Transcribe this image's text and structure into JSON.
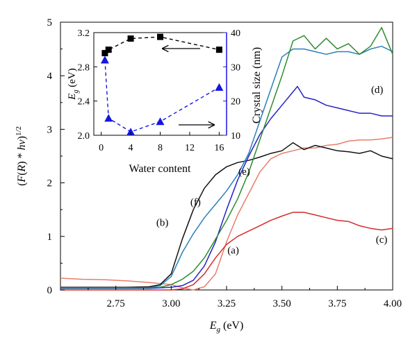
{
  "chart_data": [
    {
      "type": "line",
      "xlabel": "E_g (eV)",
      "ylabel": "(F(R) * hv)^1/2",
      "xlim": [
        2.5,
        4.0
      ],
      "ylim": [
        0,
        5
      ],
      "xticks": [
        "2.75",
        "3.00",
        "3.25",
        "3.50",
        "3.75",
        "4.00"
      ],
      "yticks": [
        "0",
        "1",
        "2",
        "3",
        "4",
        "5"
      ],
      "grid": false,
      "series": [
        {
          "name": "(a)",
          "color": "#e87d6b",
          "label_at": [
            3.28,
            0.68
          ],
          "x": [
            2.5,
            2.6,
            2.7,
            2.8,
            2.9,
            3.0,
            3.05,
            3.1,
            3.15,
            3.2,
            3.25,
            3.3,
            3.35,
            3.4,
            3.45,
            3.5,
            3.55,
            3.6,
            3.65,
            3.7,
            3.75,
            3.8,
            3.85,
            3.9,
            3.95,
            4.0
          ],
          "y": [
            0.22,
            0.2,
            0.19,
            0.17,
            0.14,
            0.1,
            0.04,
            0.0,
            0.06,
            0.3,
            0.9,
            1.4,
            1.8,
            2.2,
            2.45,
            2.55,
            2.6,
            2.65,
            2.65,
            2.7,
            2.72,
            2.78,
            2.8,
            2.8,
            2.82,
            2.85
          ]
        },
        {
          "name": "(b)",
          "color": "#111111",
          "label_at": [
            2.96,
            1.2
          ],
          "x": [
            2.5,
            2.7,
            2.8,
            2.9,
            2.95,
            3.0,
            3.05,
            3.1,
            3.15,
            3.2,
            3.25,
            3.3,
            3.35,
            3.4,
            3.45,
            3.5,
            3.55,
            3.6,
            3.65,
            3.7,
            3.75,
            3.8,
            3.85,
            3.9,
            3.95,
            4.0
          ],
          "y": [
            0.05,
            0.05,
            0.05,
            0.06,
            0.1,
            0.3,
            0.95,
            1.5,
            1.9,
            2.15,
            2.3,
            2.38,
            2.42,
            2.48,
            2.55,
            2.6,
            2.75,
            2.62,
            2.7,
            2.65,
            2.6,
            2.58,
            2.55,
            2.6,
            2.5,
            2.45
          ]
        },
        {
          "name": "(c)",
          "color": "#d62a2a",
          "label_at": [
            3.95,
            0.88
          ],
          "x": [
            2.5,
            2.9,
            3.0,
            3.05,
            3.1,
            3.15,
            3.2,
            3.25,
            3.3,
            3.35,
            3.4,
            3.45,
            3.5,
            3.55,
            3.6,
            3.65,
            3.7,
            3.75,
            3.8,
            3.85,
            3.9,
            3.95,
            4.0
          ],
          "y": [
            0.0,
            0.0,
            0.0,
            0.02,
            0.1,
            0.3,
            0.6,
            0.85,
            1.0,
            1.1,
            1.2,
            1.3,
            1.38,
            1.45,
            1.45,
            1.4,
            1.35,
            1.3,
            1.28,
            1.2,
            1.15,
            1.12,
            1.15
          ]
        },
        {
          "name": "(d)",
          "color": "#2323c8",
          "label_at": [
            3.93,
            3.68
          ],
          "x": [
            2.5,
            2.9,
            3.0,
            3.05,
            3.1,
            3.15,
            3.2,
            3.25,
            3.3,
            3.35,
            3.4,
            3.45,
            3.5,
            3.55,
            3.57,
            3.6,
            3.65,
            3.7,
            3.75,
            3.8,
            3.85,
            3.9,
            3.95,
            4.0
          ],
          "y": [
            0.03,
            0.03,
            0.05,
            0.08,
            0.18,
            0.45,
            0.9,
            1.5,
            2.05,
            2.5,
            2.9,
            3.2,
            3.45,
            3.7,
            3.8,
            3.6,
            3.55,
            3.45,
            3.4,
            3.35,
            3.3,
            3.3,
            3.25,
            3.25
          ]
        },
        {
          "name": "(e)",
          "color": "#2a7fb8",
          "label_at": [
            3.33,
            2.15
          ],
          "x": [
            2.5,
            2.9,
            2.95,
            3.0,
            3.05,
            3.1,
            3.15,
            3.2,
            3.25,
            3.3,
            3.35,
            3.4,
            3.45,
            3.5,
            3.55,
            3.6,
            3.65,
            3.7,
            3.75,
            3.8,
            3.85,
            3.9,
            3.95,
            4.0
          ],
          "y": [
            0.04,
            0.04,
            0.08,
            0.25,
            0.7,
            1.05,
            1.35,
            1.6,
            1.85,
            2.15,
            2.55,
            3.15,
            3.75,
            4.35,
            4.5,
            4.5,
            4.45,
            4.4,
            4.45,
            4.45,
            4.4,
            4.5,
            4.55,
            4.45
          ]
        },
        {
          "name": "(f)",
          "color": "#2e8b2e",
          "label_at": [
            3.11,
            1.58
          ],
          "x": [
            2.5,
            2.9,
            2.95,
            3.0,
            3.05,
            3.1,
            3.15,
            3.2,
            3.25,
            3.3,
            3.35,
            3.4,
            3.45,
            3.5,
            3.55,
            3.6,
            3.65,
            3.7,
            3.75,
            3.8,
            3.85,
            3.9,
            3.95,
            4.0
          ],
          "y": [
            0.04,
            0.04,
            0.05,
            0.1,
            0.2,
            0.35,
            0.6,
            0.95,
            1.3,
            1.7,
            2.2,
            2.8,
            3.4,
            4.0,
            4.65,
            4.75,
            4.5,
            4.7,
            4.5,
            4.6,
            4.4,
            4.55,
            4.9,
            4.4
          ]
        }
      ]
    },
    {
      "type": "scatter",
      "xlabel": "Water content",
      "ylabel": "E_g (eV)",
      "ylabel_right": "Crystal size (nm)",
      "xlim": [
        -1,
        17
      ],
      "ylim": [
        2.0,
        3.2
      ],
      "ylim_right": [
        10,
        40
      ],
      "xticks": [
        "0",
        "4",
        "8",
        "12",
        "16"
      ],
      "yticks": [
        "2.0",
        "2.4",
        "2.8",
        "3.2"
      ],
      "yticks_right": [
        "10",
        "20",
        "30",
        "40"
      ],
      "series": [
        {
          "name": "E_g",
          "axis": "left",
          "marker": "square",
          "color": "#000000",
          "x": [
            0.5,
            1,
            4,
            8,
            16
          ],
          "y": [
            2.96,
            3.0,
            3.13,
            3.15,
            3.0
          ]
        },
        {
          "name": "Crystal size",
          "axis": "right",
          "marker": "triangle",
          "color": "#1515e0",
          "x": [
            0.5,
            1,
            4,
            8,
            16
          ],
          "y": [
            32,
            15,
            11,
            14,
            24
          ]
        }
      ]
    }
  ]
}
